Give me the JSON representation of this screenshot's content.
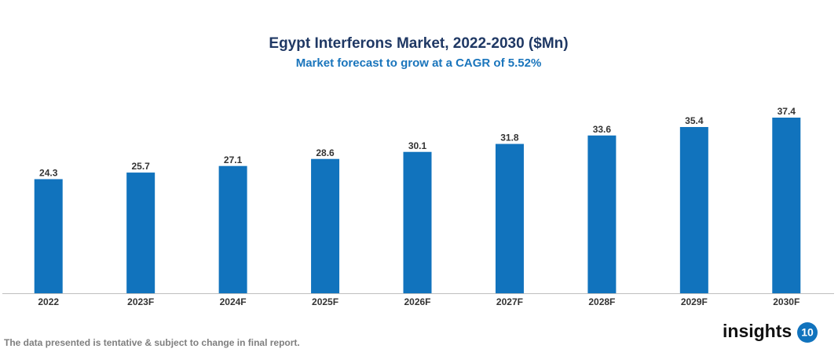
{
  "chart_data": {
    "type": "bar",
    "title": "Egypt Interferons Market, 2022-2030 ($Mn)",
    "subtitle": "Market forecast to grow at a CAGR of 5.52%",
    "categories": [
      "2022",
      "2023F",
      "2024F",
      "2025F",
      "2026F",
      "2027F",
      "2028F",
      "2029F",
      "2030F"
    ],
    "values": [
      24.3,
      25.7,
      27.1,
      28.6,
      30.1,
      31.8,
      33.6,
      35.4,
      37.4
    ],
    "color": "#1173bd"
  },
  "footnote": "The data presented is tentative & subject to change in final report.",
  "logo": {
    "text": "insights",
    "badge": "10"
  }
}
